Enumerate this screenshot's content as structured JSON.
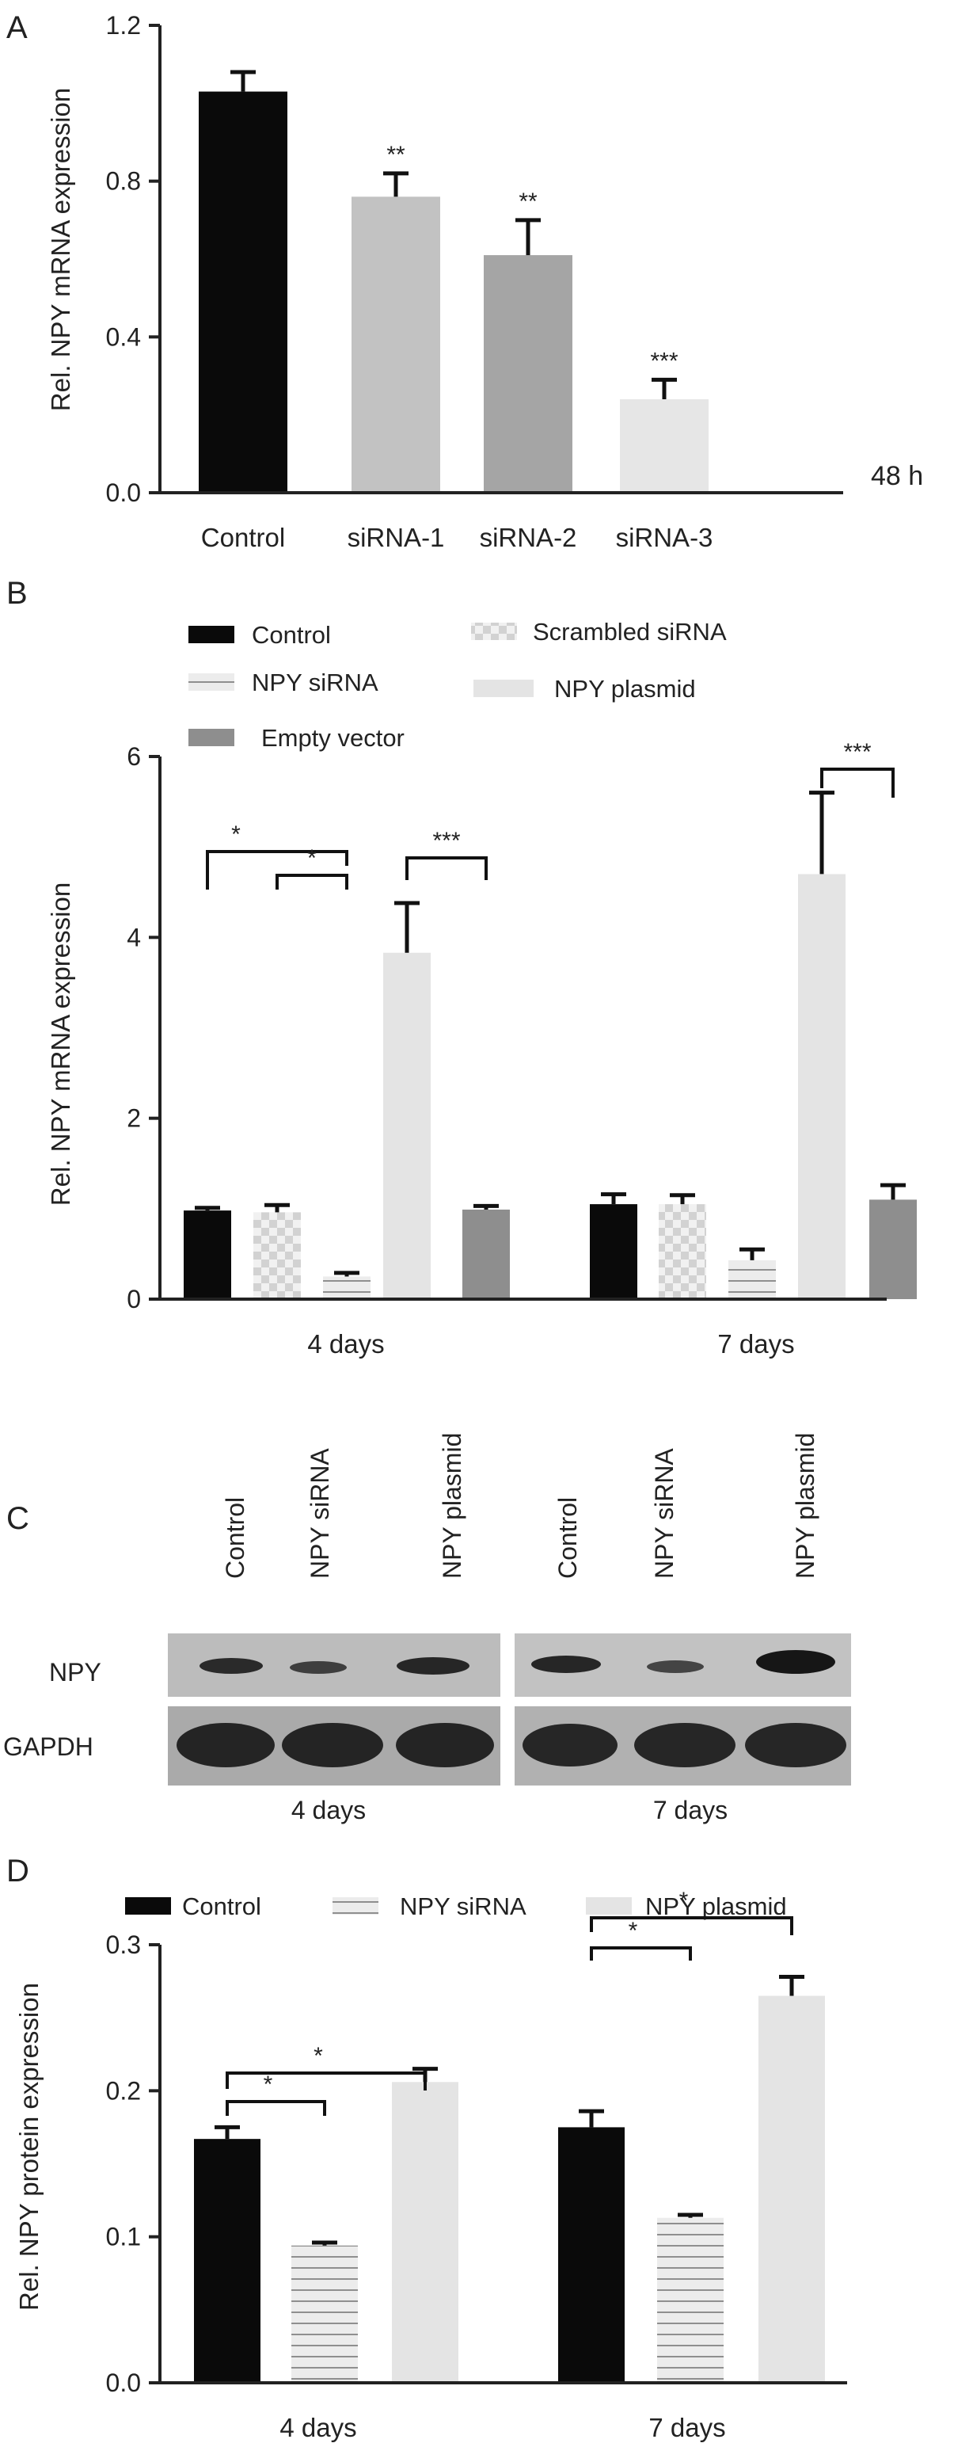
{
  "panels": {
    "a": {
      "letter": "A"
    },
    "b": {
      "letter": "B"
    },
    "c": {
      "letter": "C"
    },
    "d": {
      "letter": "D"
    }
  },
  "colors": {
    "control": "#0a0a0a",
    "sirna1": "#c2c2c2",
    "sirna2": "#a5a5a5",
    "sirna3": "#e6e6e6",
    "npy_sirna": "#bdbdbd",
    "plasmid": "#e4e4e4",
    "empty_vector": "#8e8e8e",
    "scrambled_a": "#d6d6d6",
    "scrambled_b": "#f1f1f1"
  },
  "western_blot": {
    "lanes": [
      "Control",
      "NPY siRNA",
      "NPY plasmid"
    ],
    "rows": [
      "NPY",
      "GAPDH"
    ],
    "groups": [
      "4 days",
      "7 days"
    ]
  },
  "chart_data": [
    {
      "panel": "A",
      "type": "bar",
      "ylabel": "Rel. NPY mRNA expression",
      "ylim": [
        0,
        1.2
      ],
      "yticks": [
        "0.0",
        "0.4",
        "0.8",
        "1.2"
      ],
      "categories": [
        "Control",
        "siRNA-1",
        "siRNA-2",
        "siRNA-3"
      ],
      "values": [
        1.03,
        0.76,
        0.61,
        0.24
      ],
      "errors": [
        0.05,
        0.06,
        0.09,
        0.05
      ],
      "significance": [
        "",
        "**",
        "**",
        "***"
      ],
      "annotation": "48 h"
    },
    {
      "panel": "B",
      "type": "bar",
      "ylabel": "Rel. NPY mRNA expression",
      "ylim": [
        0,
        6
      ],
      "yticks": [
        "0",
        "2",
        "4",
        "6"
      ],
      "categories": [
        "4 days",
        "7 days"
      ],
      "legend": [
        "Control",
        "Scrambled siRNA",
        "NPY siRNA",
        "NPY plasmid",
        "Empty vector"
      ],
      "series": [
        {
          "name": "Control",
          "values": [
            0.98,
            1.05
          ],
          "errors": [
            0.03,
            0.11
          ]
        },
        {
          "name": "Scrambled siRNA",
          "values": [
            0.96,
            1.05
          ],
          "errors": [
            0.08,
            0.1
          ]
        },
        {
          "name": "NPY siRNA",
          "values": [
            0.25,
            0.43
          ],
          "errors": [
            0.04,
            0.12
          ]
        },
        {
          "name": "NPY plasmid",
          "values": [
            3.83,
            4.7
          ],
          "errors": [
            0.55,
            0.9
          ]
        },
        {
          "name": "Empty vector",
          "values": [
            0.99,
            1.1
          ],
          "errors": [
            0.04,
            0.16
          ]
        }
      ],
      "brackets": [
        {
          "group": 0,
          "from": 0,
          "to": 2,
          "label": "*"
        },
        {
          "group": 0,
          "from": 1,
          "to": 2,
          "label": "*"
        },
        {
          "group": 0,
          "from": 3,
          "to": 4,
          "label": "***"
        },
        {
          "group": 1,
          "from": 3,
          "to": 4,
          "label": "***"
        }
      ]
    },
    {
      "panel": "D",
      "type": "bar",
      "ylabel": "Rel. NPY protein expression",
      "ylim": [
        0,
        0.3
      ],
      "yticks": [
        "0.0",
        "0.1",
        "0.2",
        "0.3"
      ],
      "categories": [
        "4 days",
        "7 days"
      ],
      "legend": [
        "Control",
        "NPY siRNA",
        "NPY plasmid"
      ],
      "series": [
        {
          "name": "Control",
          "values": [
            0.167,
            0.175
          ],
          "errors": [
            0.008,
            0.011
          ]
        },
        {
          "name": "NPY siRNA",
          "values": [
            0.094,
            0.113
          ],
          "errors": [
            0.002,
            0.002
          ]
        },
        {
          "name": "NPY plasmid",
          "values": [
            0.206,
            0.265
          ],
          "errors": [
            0.009,
            0.013
          ]
        }
      ],
      "brackets": [
        {
          "group": 0,
          "from": 0,
          "to": 1,
          "label": "*"
        },
        {
          "group": 0,
          "from": 0,
          "to": 2,
          "label": "*"
        },
        {
          "group": 1,
          "from": 0,
          "to": 1,
          "label": "*"
        },
        {
          "group": 1,
          "from": 0,
          "to": 2,
          "label": "*"
        }
      ]
    }
  ]
}
